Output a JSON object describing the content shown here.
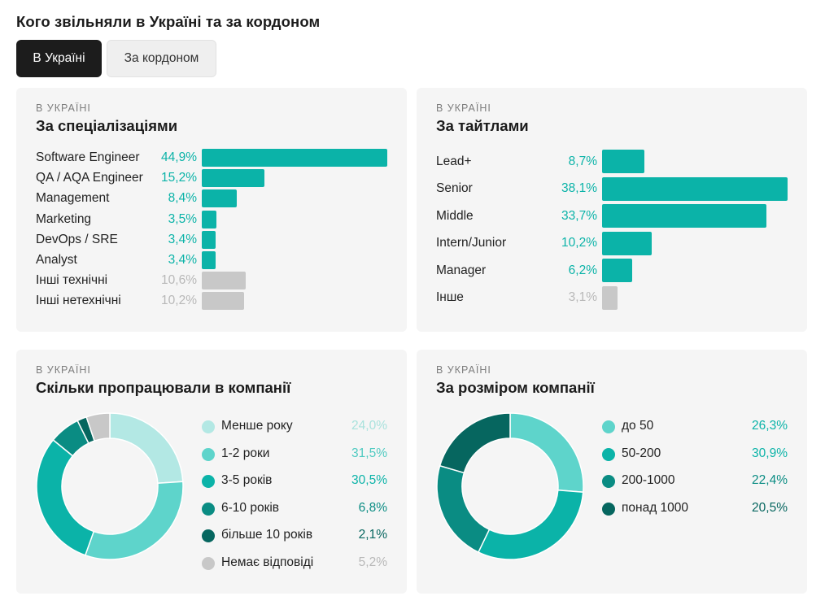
{
  "header": {
    "title": "Кого звільняли в Україні та за кордоном",
    "tabs": [
      {
        "label": "В Україні",
        "active": true
      },
      {
        "label": "За кордоном",
        "active": false
      }
    ]
  },
  "colors": {
    "teal_primary": "#0bb3a8",
    "grey_other": "#c8c8c8",
    "grey_pct_text": "#b8b8b8",
    "teal_pct_text": "#0bb3a8",
    "card_bg": "#f5f5f5",
    "tab_active_bg": "#1c1c1c"
  },
  "chart_data": [
    {
      "type": "bar",
      "orientation": "horizontal",
      "kicker": "В УКРАЇНІ",
      "title": "За спеціалізаціями",
      "categories": [
        "Software Engineer",
        "QA / AQA Engineer",
        "Management",
        "Marketing",
        "DevOps / SRE",
        "Analyst",
        "Інші технічні",
        "Інші нетехнічні"
      ],
      "values": [
        44.9,
        15.2,
        8.4,
        3.5,
        3.4,
        3.4,
        10.6,
        10.2
      ],
      "value_labels": [
        "44,9%",
        "15,2%",
        "8,4%",
        "3,5%",
        "3,4%",
        "3,4%",
        "10,6%",
        "10,2%"
      ],
      "colors": [
        "#0bb3a8",
        "#0bb3a8",
        "#0bb3a8",
        "#0bb3a8",
        "#0bb3a8",
        "#0bb3a8",
        "#c8c8c8",
        "#c8c8c8"
      ],
      "max": 44.9
    },
    {
      "type": "bar",
      "orientation": "horizontal",
      "kicker": "В УКРАЇНІ",
      "title": "За тайтлами",
      "categories": [
        "Lead+",
        "Senior",
        "Middle",
        "Intern/Junior",
        "Manager",
        "Інше"
      ],
      "values": [
        8.7,
        38.1,
        33.7,
        10.2,
        6.2,
        3.1
      ],
      "value_labels": [
        "8,7%",
        "38,1%",
        "33,7%",
        "10,2%",
        "6,2%",
        "3,1%"
      ],
      "colors": [
        "#0bb3a8",
        "#0bb3a8",
        "#0bb3a8",
        "#0bb3a8",
        "#0bb3a8",
        "#c8c8c8"
      ],
      "max": 38.1
    },
    {
      "type": "pie",
      "donut": true,
      "kicker": "В УКРАЇНІ",
      "title": "Скільки пропрацювали в компанії",
      "labels": [
        "Менше року",
        "1-2 роки",
        "3-5 років",
        "6-10 років",
        "більше 10 років",
        "Немає відповіді"
      ],
      "values": [
        24.0,
        31.5,
        30.5,
        6.8,
        2.1,
        5.2
      ],
      "value_labels": [
        "24,0%",
        "31,5%",
        "30,5%",
        "6,8%",
        "2,1%",
        "5,2%"
      ],
      "colors": [
        "#b3e8e4",
        "#5ed4cb",
        "#0bb3a8",
        "#0a8c83",
        "#06665f",
        "#c8c8c8"
      ],
      "pct_colors": [
        "#a9e2dd",
        "#4fcac1",
        "#0bb3a8",
        "#0a8c83",
        "#06665f",
        "#b8b8b8"
      ]
    },
    {
      "type": "pie",
      "donut": true,
      "kicker": "В УКРАЇНІ",
      "title": "За розміром компанії",
      "labels": [
        "до 50",
        "50-200",
        "200-1000",
        "понад 1000"
      ],
      "values": [
        26.3,
        30.9,
        22.4,
        20.5
      ],
      "value_labels": [
        "26,3%",
        "30,9%",
        "22,4%",
        "20,5%"
      ],
      "colors": [
        "#5ed4cb",
        "#0bb3a8",
        "#0a8c83",
        "#06665f"
      ],
      "pct_colors": [
        "#0bb3a8",
        "#0bb3a8",
        "#0a8c83",
        "#06665f"
      ]
    }
  ]
}
